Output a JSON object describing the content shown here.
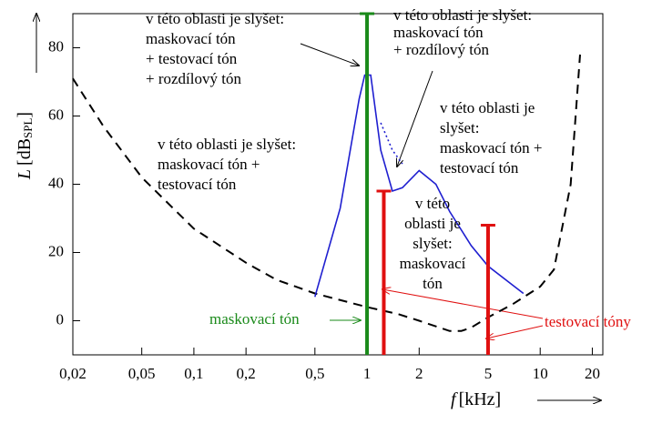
{
  "chart_data": {
    "type": "line",
    "ylabel": {
      "symbol": "L",
      "text": "[dB",
      "sub": "SPL",
      "end": "]"
    },
    "xlabel": {
      "symbol": "f",
      "text": "[kHz]"
    },
    "log_x": true,
    "xlim": [
      0.02,
      23
    ],
    "ylim": [
      -10,
      90
    ],
    "xticks": [
      {
        "value": 0.02,
        "label": "0,02"
      },
      {
        "value": 0.05,
        "label": "0,05"
      },
      {
        "value": 0.1,
        "label": "0,1"
      },
      {
        "value": 0.2,
        "label": "0,2"
      },
      {
        "value": 0.5,
        "label": "0,5"
      },
      1,
      2,
      5,
      10,
      20
    ],
    "yticks": [
      0,
      20,
      40,
      60,
      80
    ],
    "series": [
      {
        "color": "#000000",
        "style": "dashed",
        "x": [
          0.02,
          0.03,
          0.05,
          0.1,
          0.2,
          0.3,
          0.5,
          1,
          1.5,
          2,
          3,
          3.5,
          4,
          5,
          7,
          10,
          12,
          15,
          17
        ],
        "values": [
          71,
          57,
          42,
          27,
          17,
          12,
          8,
          4,
          2,
          0,
          -3,
          -3,
          -2,
          1,
          5,
          10,
          15,
          40,
          78
        ]
      },
      {
        "color": "#1f1fd0",
        "style": "solid",
        "x": [
          0.5,
          0.7,
          0.9,
          0.97,
          1.05,
          1.2,
          1.4,
          1.6,
          2,
          2.5,
          3,
          4,
          5,
          8
        ],
        "values": [
          7,
          33,
          65,
          72,
          72,
          50,
          38,
          39,
          44,
          40,
          32,
          22,
          16,
          8
        ]
      },
      {
        "color": "#1f1fd0",
        "style": "dotted",
        "x": [
          1.2,
          1.4,
          1.6
        ],
        "values": [
          58,
          50,
          46
        ]
      }
    ],
    "markers": [
      {
        "x": 1,
        "y": 90,
        "color": "#1a8a1a"
      },
      {
        "x": 1.25,
        "y": 38,
        "color": "#e01010"
      },
      {
        "x": 5,
        "y": 28,
        "color": "#e01010"
      }
    ],
    "annotations": [
      {
        "lines": [
          "v této oblasti je slyšet:",
          "maskovací tón",
          "+ testovací tón",
          "+ rozdílový tón"
        ]
      },
      {
        "lines": [
          "v této oblasti je slyšet:",
          "maskovací tón",
          "+ rozdílový tón"
        ]
      },
      {
        "lines": [
          "v této oblasti je",
          "slyšet:",
          "maskovací tón +",
          "testovací tón"
        ]
      },
      {
        "lines": [
          "v této oblasti je slyšet:",
          "maskovací tón +",
          "testovací tón"
        ]
      },
      {
        "lines": [
          "v této",
          "oblasti je",
          "slyšet:",
          "maskovací",
          "tón"
        ]
      }
    ],
    "masking_label": "maskovací tón",
    "test_label": "testovací tóny"
  }
}
